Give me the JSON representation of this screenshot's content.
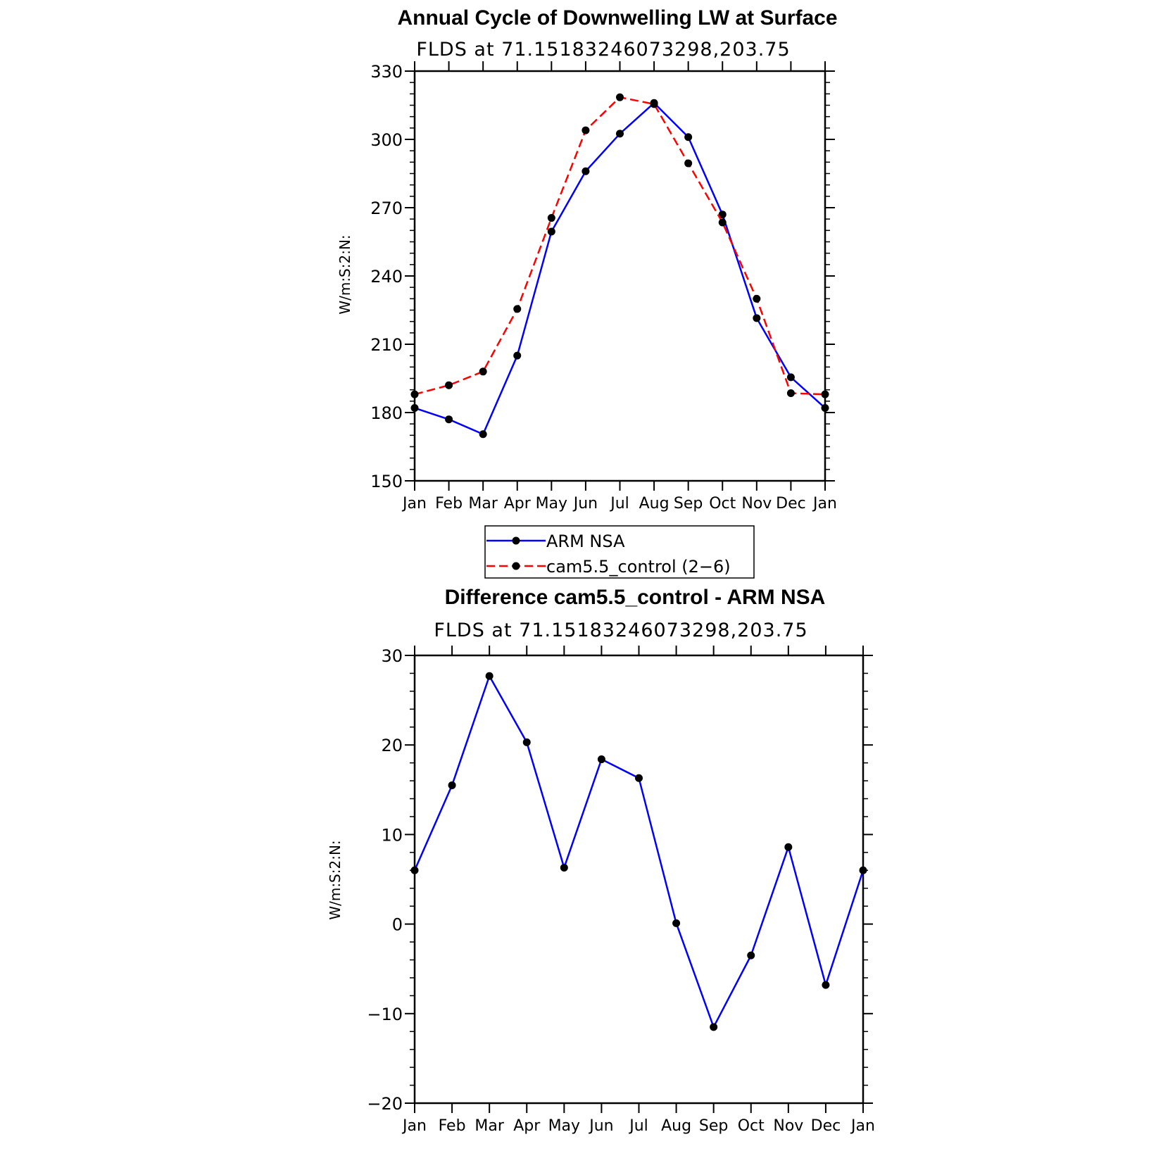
{
  "chart_data": [
    {
      "type": "line",
      "title": "Annual Cycle of Downwelling LW at Surface",
      "subtitle": "FLDS at 71.15183246073298,203.75",
      "ylabel": "W/m:S:2:N:",
      "xlabel": "",
      "categories": [
        "Jan",
        "Feb",
        "Mar",
        "Apr",
        "May",
        "Jun",
        "Jul",
        "Aug",
        "Sep",
        "Oct",
        "Nov",
        "Dec",
        "Jan"
      ],
      "ylim": [
        150,
        330
      ],
      "yticks": [
        150,
        180,
        210,
        240,
        270,
        300,
        330
      ],
      "series": [
        {
          "name": "ARM NSA",
          "color": "#0000ff",
          "dash": "solid",
          "values": [
            182,
            177,
            170.5,
            205,
            259.5,
            286,
            302.5,
            316,
            301,
            267,
            221.5,
            195.5,
            182
          ]
        },
        {
          "name": "cam5.5_control (2−6)",
          "color": "#ff0000",
          "dash": "dashed",
          "values": [
            188,
            192,
            198,
            225.5,
            265.5,
            304,
            318.5,
            315.5,
            289.5,
            263.5,
            230,
            188.5,
            188
          ]
        }
      ],
      "legend": "below"
    },
    {
      "type": "line",
      "title": "Difference cam5.5_control - ARM NSA",
      "subtitle": "FLDS at 71.15183246073298,203.75",
      "ylabel": "W/m:S:2:N:",
      "xlabel": "",
      "categories": [
        "Jan",
        "Feb",
        "Mar",
        "Apr",
        "May",
        "Jun",
        "Jul",
        "Aug",
        "Sep",
        "Oct",
        "Nov",
        "Dec",
        "Jan"
      ],
      "ylim": [
        -20,
        30
      ],
      "yticks": [
        -20,
        -10,
        0,
        10,
        20,
        30
      ],
      "ytick_labels": [
        "−20",
        "−10",
        "0",
        "10",
        "20",
        "30"
      ],
      "series": [
        {
          "name": "",
          "color": "#0000ff",
          "dash": "solid",
          "values": [
            6,
            15.5,
            27.7,
            20.3,
            6.3,
            18.4,
            16.3,
            0.1,
            -11.5,
            -3.5,
            8.6,
            -6.8,
            6
          ]
        }
      ]
    }
  ]
}
